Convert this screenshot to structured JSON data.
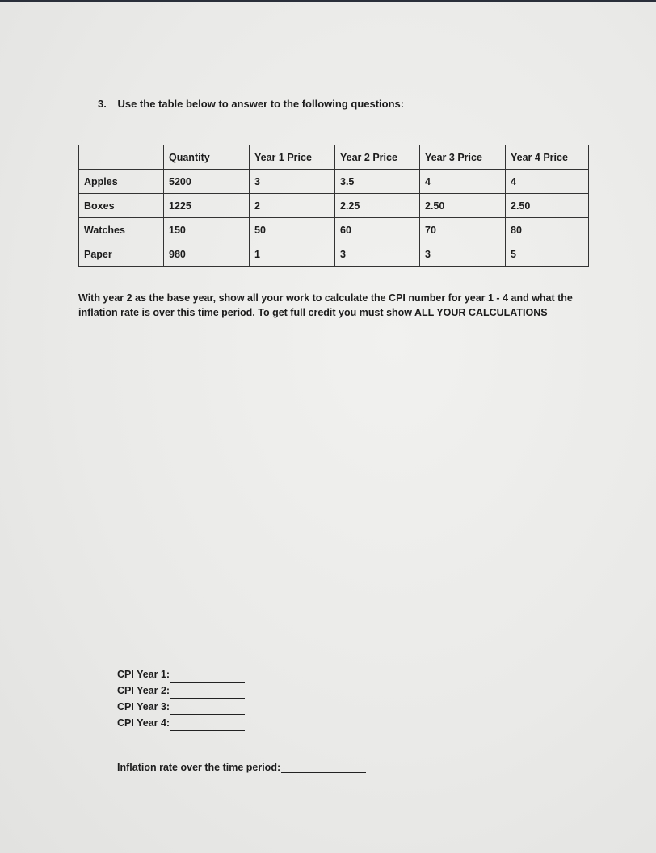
{
  "question": {
    "number": "3.",
    "prompt": "Use the table below to answer to the following questions:"
  },
  "table": {
    "headers": [
      "",
      "Quantity",
      "Year 1 Price",
      "Year 2 Price",
      "Year 3 Price",
      "Year 4 Price"
    ],
    "rows": [
      [
        "Apples",
        "5200",
        "3",
        "3.5",
        "4",
        "4"
      ],
      [
        "Boxes",
        "1225",
        "2",
        "2.25",
        "2.50",
        "2.50"
      ],
      [
        "Watches",
        "150",
        "50",
        "60",
        "70",
        "80"
      ],
      [
        "Paper",
        "980",
        "1",
        "3",
        "3",
        "5"
      ]
    ]
  },
  "instructions": "With year 2 as the base year, show all your work to calculate the CPI number for year 1 - 4 and what the inflation rate is over this time period.  To get full credit you must show ALL YOUR CALCULATIONS",
  "answers": {
    "cpi_labels": [
      "CPI Year 1:",
      "CPI Year 2:",
      "CPI Year 3:",
      "CPI Year 4:"
    ],
    "inflation_label": "Inflation rate over the time period:"
  }
}
